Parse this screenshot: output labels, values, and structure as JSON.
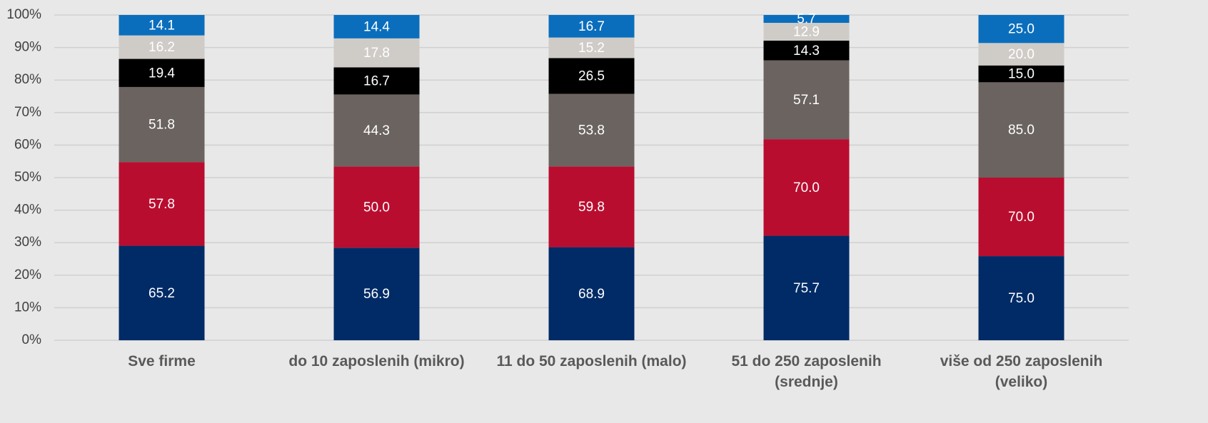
{
  "chart_data": {
    "type": "bar",
    "stacked": "percent",
    "categories": [
      "Sve firme",
      "do 10 zaposlenih (mikro)",
      "11 do 50 zaposlenih (malo)",
      "51 do 250 zaposlenih (srednje)",
      "više od 250 zaposlenih (veliko)"
    ],
    "series": [
      {
        "color": "#002b66",
        "values": [
          65.2,
          56.9,
          68.9,
          75.7,
          75.0
        ],
        "value_labels": [
          "65.2",
          "56.9",
          "68.9",
          "75.7",
          "75.0"
        ]
      },
      {
        "color": "#b90d2f",
        "values": [
          57.8,
          50.0,
          59.8,
          70.0,
          70.0
        ],
        "value_labels": [
          "57.8",
          "50.0",
          "59.8",
          "70.0",
          "70.0"
        ]
      },
      {
        "color": "#6b6360",
        "values": [
          51.8,
          44.3,
          53.8,
          57.1,
          85.0
        ],
        "value_labels": [
          "51.8",
          "44.3",
          "53.8",
          "57.1",
          "85.0"
        ]
      },
      {
        "color": "#000000",
        "values": [
          19.4,
          16.7,
          26.5,
          14.3,
          15.0
        ],
        "value_labels": [
          "19.4",
          "16.7",
          "26.5",
          "14.3",
          "15.0"
        ]
      },
      {
        "color": "#cfccc8",
        "values": [
          16.2,
          17.8,
          15.2,
          12.9,
          20.0
        ],
        "value_labels": [
          "16.2",
          "17.8",
          "15.2",
          "12.9",
          "20.0"
        ]
      },
      {
        "color": "#0a6ebd",
        "values": [
          14.1,
          14.4,
          16.7,
          5.7,
          25.0
        ],
        "value_labels": [
          "14.1",
          "14.4",
          "16.7",
          "5.7",
          "25.0"
        ]
      }
    ],
    "ylim": [
      0,
      100
    ],
    "yticks": [
      {
        "value": 0,
        "label": "0%"
      },
      {
        "value": 10,
        "label": "10%"
      },
      {
        "value": 20,
        "label": "20%"
      },
      {
        "value": 30,
        "label": "30%"
      },
      {
        "value": 40,
        "label": "40%"
      },
      {
        "value": 50,
        "label": "50%"
      },
      {
        "value": 60,
        "label": "60%"
      },
      {
        "value": 70,
        "label": "70%"
      },
      {
        "value": 80,
        "label": "80%"
      },
      {
        "value": 90,
        "label": "90%"
      },
      {
        "value": 100,
        "label": "100%"
      }
    ],
    "grid": true
  }
}
